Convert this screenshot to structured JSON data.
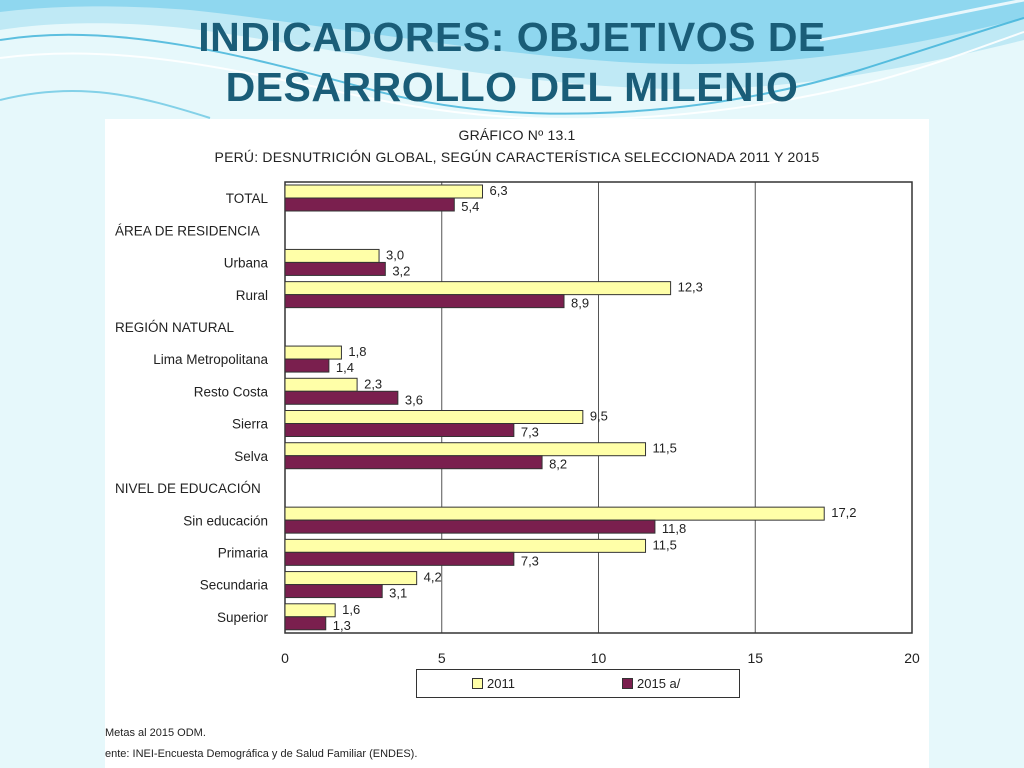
{
  "slide": {
    "title_line1": "INDICADORES: OBJETIVOS DE",
    "title_line2": "DESARROLLO DEL MILENIO"
  },
  "chart_header": {
    "number": "GRÁFICO Nº 13.1",
    "subtitle": "PERÚ: DESNUTRICIÓN GLOBAL, SEGÚN CARACTERÍSTICA SELECCIONADA 2011 Y 2015"
  },
  "chart_data": {
    "type": "bar",
    "orientation": "horizontal",
    "title": "PERÚ: DESNUTRICIÓN GLOBAL, SEGÚN CARACTERÍSTICA SELECCIONADA 2011 Y 2015",
    "xlim": [
      0,
      20
    ],
    "xticks": [
      0,
      5,
      10,
      15,
      20
    ],
    "grid": "vertical",
    "legend_position": "bottom",
    "colors": {
      "2011": "#ffffa8",
      "2015 a/": "#7a1f4e"
    },
    "rows": [
      {
        "label": "TOTAL",
        "kind": "category",
        "v2011": 6.3,
        "v2015": 5.4,
        "l2011": "6,3",
        "l2015": "5,4"
      },
      {
        "label": "ÁREA DE RESIDENCIA",
        "kind": "section"
      },
      {
        "label": "Urbana",
        "kind": "category",
        "v2011": 3.0,
        "v2015": 3.2,
        "l2011": "3,0",
        "l2015": "3,2"
      },
      {
        "label": "Rural",
        "kind": "category",
        "v2011": 12.3,
        "v2015": 8.9,
        "l2011": "12,3",
        "l2015": "8,9"
      },
      {
        "label": "REGIÓN NATURAL",
        "kind": "section"
      },
      {
        "label": "Lima Metropolitana",
        "kind": "category",
        "v2011": 1.8,
        "v2015": 1.4,
        "l2011": "1,8",
        "l2015": "1,4"
      },
      {
        "label": "Resto Costa",
        "kind": "category",
        "v2011": 2.3,
        "v2015": 3.6,
        "l2011": "2,3",
        "l2015": "3,6"
      },
      {
        "label": "Sierra",
        "kind": "category",
        "v2011": 9.5,
        "v2015": 7.3,
        "l2011": "9,5",
        "l2015": "7,3"
      },
      {
        "label": "Selva",
        "kind": "category",
        "v2011": 11.5,
        "v2015": 8.2,
        "l2011": "11,5",
        "l2015": "8,2"
      },
      {
        "label": "NIVEL DE EDUCACIÓN",
        "kind": "section"
      },
      {
        "label": "Sin educación",
        "kind": "category",
        "v2011": 17.2,
        "v2015": 11.8,
        "l2011": "17,2",
        "l2015": "11,8"
      },
      {
        "label": "Primaria",
        "kind": "category",
        "v2011": 11.5,
        "v2015": 7.3,
        "l2011": "11,5",
        "l2015": "7,3"
      },
      {
        "label": "Secundaria",
        "kind": "category",
        "v2011": 4.2,
        "v2015": 3.1,
        "l2011": "4,2",
        "l2015": "3,1"
      },
      {
        "label": "Superior",
        "kind": "category",
        "v2011": 1.6,
        "v2015": 1.3,
        "l2011": "1,6",
        "l2015": "1,3"
      }
    ],
    "series": [
      {
        "name": "2011"
      },
      {
        "name": "2015 a/"
      }
    ]
  },
  "legend": {
    "label_2011": "2011",
    "label_2015": "2015 a/"
  },
  "footnotes": {
    "line1": "Metas al 2015 ODM.",
    "line2": "ente: INEI-Encuesta Demográfica y de Salud Familiar (ENDES)."
  }
}
